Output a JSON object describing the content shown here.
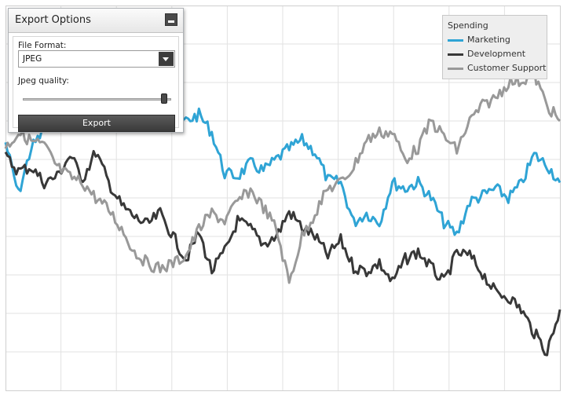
{
  "export_panel": {
    "title": "Export Options",
    "minimize_icon": "minimize-icon",
    "file_format_label": "File Format:",
    "file_format_value": "JPEG",
    "dropdown_icon": "caret-down-icon",
    "jpeg_quality_label": "Jpeg quality:",
    "jpeg_quality_value": 0.95,
    "export_button_label": "Export"
  },
  "chart_data": {
    "type": "line",
    "grid": true,
    "legend": {
      "title": "Spending",
      "placement": "top-right"
    },
    "series": [
      {
        "name": "Marketing",
        "color": "#2fa4d5",
        "values": [
          178,
          245,
          185,
          162,
          128,
          115,
          108,
          96,
          102,
          106,
          93,
          98,
          130,
          152,
          150,
          142,
          165,
          218,
          222,
          205,
          215,
          200,
          186,
          175,
          190,
          227,
          230,
          282,
          270,
          282,
          230,
          238,
          230,
          250,
          282,
          298,
          255,
          247,
          238,
          250,
          232,
          194,
          207,
          230
        ]
      },
      {
        "name": "Development",
        "color": "#383838",
        "values": [
          197,
          215,
          210,
          230,
          222,
          195,
          225,
          190,
          230,
          260,
          275,
          285,
          270,
          300,
          330,
          295,
          345,
          320,
          280,
          290,
          310,
          300,
          268,
          288,
          300,
          325,
          305,
          340,
          345,
          335,
          360,
          330,
          320,
          340,
          360,
          322,
          325,
          348,
          373,
          378,
          395,
          425,
          450,
          395
        ]
      },
      {
        "name": "Customer Support",
        "color": "#999999",
        "values": [
          185,
          165,
          176,
          182,
          210,
          223,
          230,
          250,
          265,
          290,
          320,
          335,
          342,
          335,
          325,
          290,
          270,
          280,
          255,
          240,
          262,
          290,
          360,
          300,
          270,
          238,
          230,
          210,
          175,
          165,
          165,
          200,
          185,
          150,
          170,
          188,
          150,
          130,
          120,
          100,
          98,
          90,
          130,
          150
        ]
      }
    ]
  }
}
